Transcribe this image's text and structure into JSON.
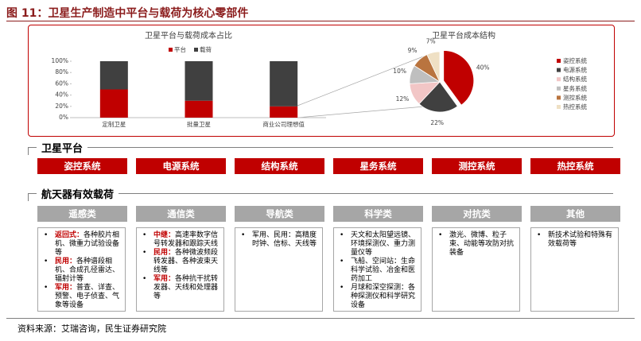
{
  "header": {
    "title": "图 11：卫星生产制造中平台与载荷为核心零部件"
  },
  "chart_data": [
    {
      "type": "bar",
      "stacked": true,
      "title": "卫星平台与载荷成本占比",
      "categories": [
        "定制卫星",
        "批量卫星",
        "商业公司理想值"
      ],
      "series": [
        {
          "name": "平台",
          "color": "#c00000",
          "values": [
            50,
            30,
            20
          ]
        },
        {
          "name": "载荷",
          "color": "#404040",
          "values": [
            50,
            70,
            80
          ]
        }
      ],
      "ylim": [
        0,
        100
      ],
      "yticks": [
        {
          "value": 0,
          "label": "0%"
        },
        {
          "value": 20,
          "label": "20%"
        },
        {
          "value": 40,
          "label": "40%"
        },
        {
          "value": 60,
          "label": "60%"
        },
        {
          "value": 80,
          "label": "80%"
        },
        {
          "value": 100,
          "label": "100%"
        }
      ]
    },
    {
      "type": "pie",
      "title": "卫星平台成本结构",
      "categories": [
        "姿控系统",
        "电源系统",
        "结构系统",
        "星务系统",
        "测控系统",
        "热控系统"
      ],
      "values": [
        40,
        22,
        12,
        10,
        9,
        7
      ],
      "value_labels": [
        "40%",
        "22%",
        "12%",
        "10%",
        "9%",
        "7%"
      ],
      "colors": [
        "#c00000",
        "#404040",
        "#f2c6c6",
        "#bfbfbf",
        "#b9743f",
        "#efe0c4"
      ]
    }
  ],
  "satellite_platform": {
    "title": "卫星平台",
    "systems": [
      "姿控系统",
      "电源系统",
      "结构系统",
      "星务系统",
      "测控系统",
      "热控系统"
    ]
  },
  "payload": {
    "title": "航天器有效载荷",
    "columns": [
      {
        "name": "遥感类",
        "items": [
          {
            "label": "返回式：",
            "text": "各种胶片相机、微重力试验设备等"
          },
          {
            "label": "民用：",
            "text": "各种谱段相机、合成孔径雷达、辐射计等"
          },
          {
            "label": "军用：",
            "text": "普查、详查、预警、电子侦查、气象等设备"
          }
        ]
      },
      {
        "name": "通信类",
        "items": [
          {
            "label": "中继：",
            "text": "高速率数字信号转发器和跟踪天线"
          },
          {
            "label": "民用：",
            "text": "各种微波频段转发器、各种波束天线等"
          },
          {
            "label": "军用：",
            "text": "各种抗干扰转发器、天线和处理器等"
          }
        ]
      },
      {
        "name": "导航类",
        "items": [
          {
            "text": "军用、民用：高精度时钟、信标、天线等"
          }
        ]
      },
      {
        "name": "科学类",
        "items": [
          {
            "text": "天文和太阳望远镜、环境探测仪、重力测量仪等"
          },
          {
            "text": "飞船、空间站：生命科学试验、冶金和医药加工"
          },
          {
            "text": "月球和深空探测：各种探测仪和科学研究设备"
          }
        ]
      },
      {
        "name": "对抗类",
        "items": [
          {
            "text": "激光、微博、粒子束、动能等攻防对抗装备"
          }
        ]
      },
      {
        "name": "其他",
        "items": [
          {
            "text": "新技术试验和特殊有效载荷等"
          }
        ]
      }
    ]
  },
  "footer": {
    "source": "资料来源：艾瑞咨询，民生证券研究院"
  }
}
